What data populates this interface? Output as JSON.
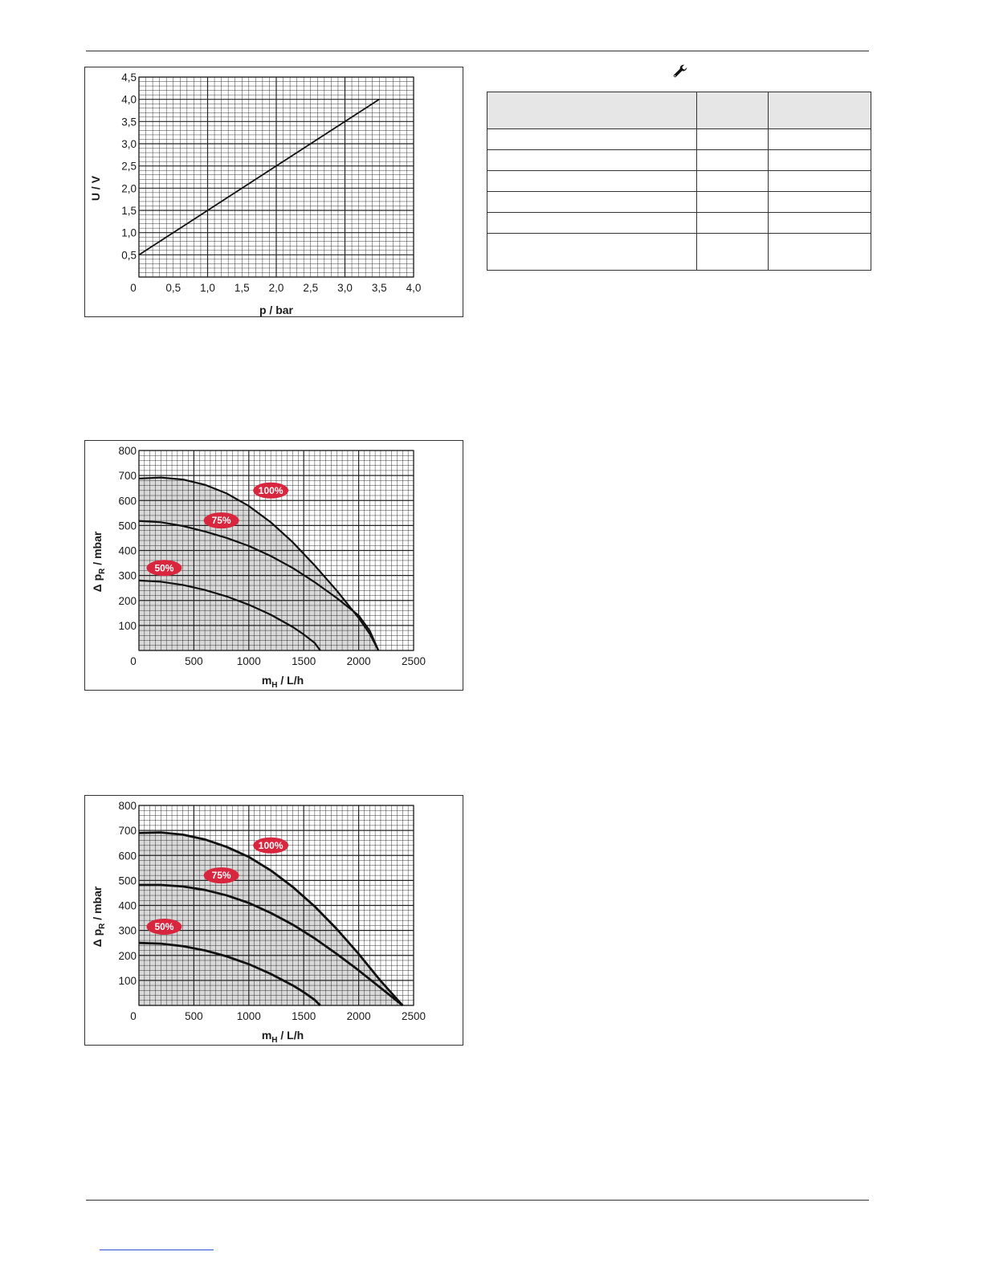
{
  "chart_data": [
    {
      "type": "line",
      "xlabel": "p / bar",
      "ylabel": "U / V",
      "xlim": [
        0,
        4.0
      ],
      "ylim": [
        0,
        4.5
      ],
      "x_ticks": [
        "0",
        "0,5",
        "1,0",
        "1,5",
        "2,0",
        "2,5",
        "3,0",
        "3,5",
        "4,0"
      ],
      "y_ticks": [
        "0,5",
        "1,0",
        "1,5",
        "2,0",
        "2,5",
        "3,0",
        "3,5",
        "4,0",
        "4,5"
      ],
      "grid": true,
      "series": [
        {
          "x": [
            0,
            3.5
          ],
          "y": [
            0.5,
            4.0
          ]
        }
      ]
    },
    {
      "type": "line",
      "xlabel_main": "m",
      "xlabel_sub": "H",
      "xlabel_rest": " / L/h",
      "ylabel_main": "Δ p",
      "ylabel_sub": "R",
      "ylabel_rest": "  /  mbar",
      "xlim": [
        0,
        2500
      ],
      "ylim": [
        0,
        800
      ],
      "x_ticks": [
        "0",
        "500",
        "1000",
        "1500",
        "2000",
        "2500"
      ],
      "y_ticks": [
        "100",
        "200",
        "300",
        "400",
        "500",
        "600",
        "700",
        "800"
      ],
      "grid": true,
      "series": [
        {
          "name": "100%",
          "x": [
            0,
            200,
            400,
            600,
            800,
            1000,
            1200,
            1400,
            1600,
            1800,
            2000,
            2100,
            2180
          ],
          "y": [
            688,
            692,
            684,
            663,
            628,
            578,
            513,
            433,
            340,
            240,
            130,
            67,
            0
          ],
          "label_at": [
            1200,
            640
          ]
        },
        {
          "name": "75%",
          "x": [
            0,
            200,
            400,
            600,
            800,
            1000,
            1200,
            1400,
            1600,
            1800,
            2000,
            2100,
            2180
          ],
          "y": [
            518,
            513,
            498,
            476,
            450,
            418,
            378,
            330,
            273,
            210,
            140,
            80,
            0
          ],
          "label_at": [
            750,
            520
          ]
        },
        {
          "name": "50%",
          "x": [
            0,
            200,
            400,
            600,
            800,
            1000,
            1200,
            1400,
            1500,
            1600,
            1650
          ],
          "y": [
            280,
            275,
            262,
            242,
            216,
            183,
            143,
            94,
            64,
            30,
            0
          ],
          "label_at": [
            230,
            330
          ]
        }
      ]
    },
    {
      "type": "line",
      "xlabel_main": "m",
      "xlabel_sub": "H",
      "xlabel_rest": " / L/h",
      "ylabel_main": "Δ p",
      "ylabel_sub": "R",
      "ylabel_rest": "  /  mbar",
      "xlim": [
        0,
        2500
      ],
      "ylim": [
        0,
        800
      ],
      "x_ticks": [
        "0",
        "500",
        "1000",
        "1500",
        "2000",
        "2500"
      ],
      "y_ticks": [
        "100",
        "200",
        "300",
        "400",
        "500",
        "600",
        "700",
        "800"
      ],
      "grid": true,
      "series": [
        {
          "name": "100%",
          "x": [
            0,
            200,
            400,
            600,
            800,
            1000,
            1200,
            1400,
            1600,
            1800,
            2000,
            2200,
            2400
          ],
          "y": [
            690,
            692,
            683,
            664,
            634,
            594,
            540,
            474,
            396,
            306,
            206,
            98,
            0
          ],
          "label_at": [
            1200,
            640
          ]
        },
        {
          "name": "75%",
          "x": [
            0,
            200,
            400,
            600,
            800,
            1000,
            1200,
            1400,
            1600,
            1800,
            2000,
            2200,
            2400
          ],
          "y": [
            482,
            482,
            476,
            462,
            440,
            410,
            370,
            323,
            268,
            206,
            140,
            70,
            0
          ],
          "label_at": [
            750,
            520
          ]
        },
        {
          "name": "50%",
          "x": [
            0,
            200,
            400,
            600,
            800,
            1000,
            1200,
            1400,
            1500,
            1600,
            1650
          ],
          "y": [
            250,
            247,
            237,
            220,
            196,
            165,
            126,
            80,
            53,
            22,
            0
          ],
          "label_at": [
            230,
            315
          ]
        }
      ]
    }
  ],
  "colors": {
    "grid": "#222222",
    "shade": "#d9d9d9",
    "line": "#111111",
    "badge": "#d7263d"
  },
  "table": {
    "rows": [
      [
        "",
        "",
        ""
      ],
      [
        "",
        "",
        ""
      ],
      [
        "",
        "",
        ""
      ],
      [
        "",
        "",
        ""
      ],
      [
        "",
        "",
        ""
      ],
      [
        "",
        "",
        ""
      ],
      [
        "",
        "",
        ""
      ]
    ]
  },
  "icons": {
    "header_tool": "wrench-icon"
  }
}
